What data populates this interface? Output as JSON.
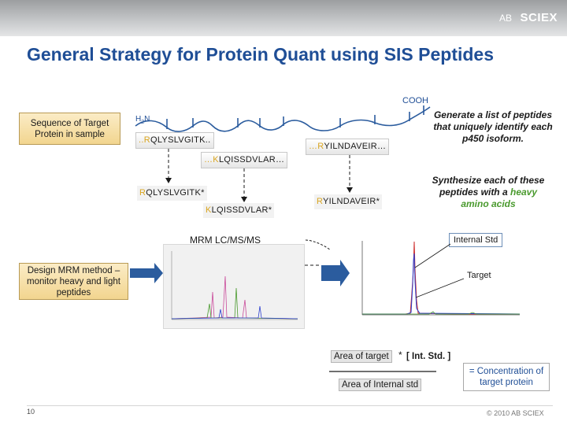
{
  "header": {
    "logo_text": "SCIEX",
    "logo_prefix": "AB"
  },
  "title": "General Strategy for Protein Quant using SIS Peptides",
  "boxes": {
    "sequence": "Sequence of Target Protein in sample",
    "design": "Design MRM method – monitor heavy and light peptides"
  },
  "termini": {
    "cooh": "COOH",
    "h2n_main": "H",
    "h2n_sub": "2",
    "h2n_end": "N"
  },
  "peptides": {
    "p1": {
      "first": "..R",
      "rest": "QLYSLVGITK.."
    },
    "p2": {
      "first": "…R",
      "rest": "YILNDAVEIR…"
    },
    "p3": {
      "first": "…K",
      "rest": "LQISSDVLAR…"
    },
    "p4": {
      "first": "R",
      "rest": "QLYSLVGITK*"
    },
    "p5": {
      "first": "K",
      "rest": "LQISSDVLAR*"
    },
    "p6": {
      "first": "R",
      "rest": "YILNDAVEIR*"
    }
  },
  "side_text": {
    "generate": "Generate a list of peptides that uniquely identify each p450 isoform.",
    "synth_prefix": "Synthesize each of these peptides with a",
    "synth_green": "heavy amino acids"
  },
  "mrm_label": "MRM LC/MS/MS",
  "labels": {
    "internal_std": "Internal Std",
    "target": "Target"
  },
  "formula": {
    "area_target": "Area of target",
    "times": "*",
    "int_std": "[ Int. Std. ]",
    "area_internal": "Area of Internal std",
    "result": "= Concentration of target protein"
  },
  "colors": {
    "title_blue": "#1f4e96",
    "gold_box": "#f2d58f",
    "arrow_blue": "#2b5c9e",
    "trace_red": "#cc2a2a",
    "trace_blue": "#2a3fd0",
    "heavy_green": "#4a9a2e"
  },
  "footer": {
    "slide_number": "10",
    "copyright": "© 2010 AB SCIEX"
  }
}
